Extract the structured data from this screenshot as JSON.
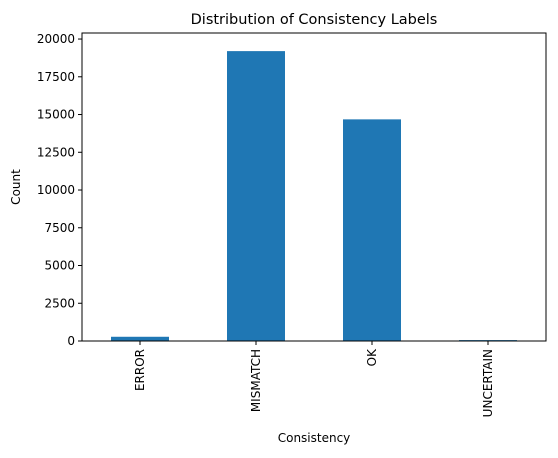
{
  "chart_data": {
    "type": "bar",
    "title": "Distribution of Consistency Labels",
    "xlabel": "Consistency",
    "ylabel": "Count",
    "categories": [
      "ERROR",
      "MISMATCH",
      "OK",
      "UNCERTAIN"
    ],
    "values": [
      280,
      19200,
      14680,
      60
    ],
    "ylim": [
      0,
      20400
    ],
    "yticks": [
      0,
      2500,
      5000,
      7500,
      10000,
      12500,
      15000,
      17500,
      20000
    ],
    "ytick_labels": [
      "0",
      "2500",
      "5000",
      "7500",
      "10000",
      "12500",
      "15000",
      "17500",
      "20000"
    ],
    "xtick_rotation": "vertical",
    "bar_color": "#1f77b4",
    "grid": false,
    "legend": "none"
  }
}
